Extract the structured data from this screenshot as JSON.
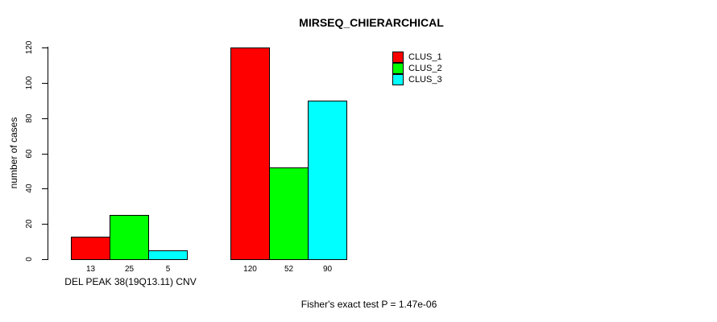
{
  "chart_data": {
    "type": "bar",
    "title": "MIRSEQ_CHIERARCHICAL",
    "ylabel": "number of cases",
    "xlabel": "DEL PEAK 38(19Q13.11) CNV",
    "annotation": "Fisher's exact test P = 1.47e-06",
    "ylim": [
      0,
      120
    ],
    "yticks": [
      0,
      20,
      40,
      60,
      80,
      100,
      120
    ],
    "grid": false,
    "legend_position": "top-right",
    "legend": [
      {
        "label": "CLUS_1",
        "color": "#ff0000"
      },
      {
        "label": "CLUS_2",
        "color": "#00ff00"
      },
      {
        "label": "CLUS_3",
        "color": "#00ffff"
      }
    ],
    "categories": [
      "CLUS_1",
      "CLUS_2",
      "CLUS_3"
    ],
    "groups": [
      {
        "name": "DEL PEAK 38(19Q13.11) CNV",
        "bars": [
          {
            "cluster": "CLUS_1",
            "value": 13,
            "color": "#ff0000"
          },
          {
            "cluster": "CLUS_2",
            "value": 25,
            "color": "#00ff00"
          },
          {
            "cluster": "CLUS_3",
            "value": 5,
            "color": "#00ffff"
          }
        ]
      },
      {
        "name": "",
        "bars": [
          {
            "cluster": "CLUS_1",
            "value": 120,
            "color": "#ff0000"
          },
          {
            "cluster": "CLUS_2",
            "value": 52,
            "color": "#00ff00"
          },
          {
            "cluster": "CLUS_3",
            "value": 90,
            "color": "#00ffff"
          }
        ]
      }
    ],
    "bar_labels": [
      "13",
      "25",
      "5",
      "120",
      "52",
      "90"
    ]
  }
}
